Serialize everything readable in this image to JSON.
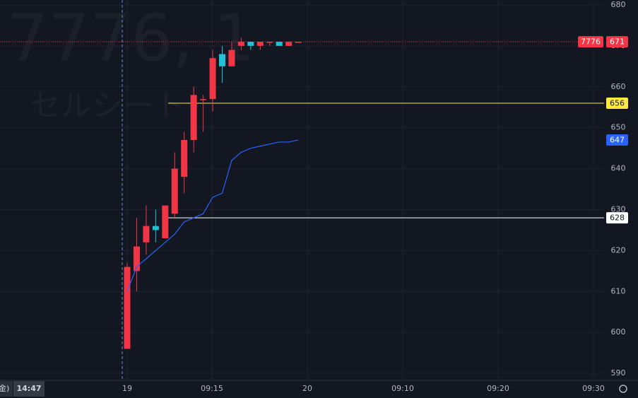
{
  "chart_data": {
    "type": "candlestick",
    "watermark": "7776, 1",
    "watermark_sub": "セルシート",
    "categories": [
      null,
      null,
      null,
      null,
      null,
      null,
      null,
      null,
      null,
      null,
      null,
      null,
      null,
      null,
      null,
      null,
      null,
      null,
      null
    ],
    "open": [
      596,
      615,
      622,
      626,
      623,
      629,
      638,
      647,
      657,
      657,
      668,
      665,
      670,
      671,
      670,
      671,
      671,
      670,
      671
    ],
    "high": [
      617,
      628,
      631,
      630,
      631,
      644,
      649,
      660,
      658,
      669,
      670,
      671,
      672,
      671,
      671,
      671,
      671,
      671,
      671
    ],
    "low": [
      596,
      610,
      619,
      622,
      623,
      628,
      634,
      644,
      649,
      654,
      661,
      665,
      669,
      669,
      669,
      670,
      670,
      670,
      671
    ],
    "close": [
      616,
      621,
      626,
      625,
      631,
      640,
      647,
      658,
      657,
      667,
      665,
      669,
      671,
      670,
      671,
      671,
      670,
      671,
      671
    ],
    "up_color": "#f23645",
    "down_color": "#22c1d6",
    "series": [
      {
        "name": null,
        "color": "#2962ff",
        "values": [
          610,
          616,
          618,
          620,
          622,
          624,
          627,
          628,
          629,
          633,
          634,
          642,
          644,
          645,
          645.5,
          646,
          646.5,
          646.5,
          647
        ]
      }
    ],
    "price_lines": [
      {
        "value": 656,
        "color": "#ffeb3b"
      },
      {
        "value": 628,
        "color": "#ffffff"
      }
    ],
    "last_price": {
      "symbol": "7776",
      "value": 671,
      "color": "#f23645"
    },
    "ma_label": {
      "value": 647,
      "color": "#2962ff"
    },
    "ylim": [
      588.3,
      681.2
    ],
    "yticks": [
      590,
      600,
      610,
      620,
      630,
      640,
      650,
      660,
      670,
      680
    ],
    "x_labels": [
      "19",
      "09:15",
      "20",
      "09:10",
      "09:20",
      "09:30"
    ],
    "cursor_time": "14:47",
    "cursor_day": "金)",
    "grid": true
  }
}
